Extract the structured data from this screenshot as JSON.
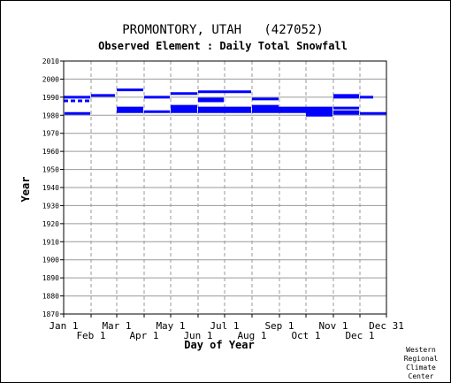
{
  "chart_data": {
    "type": "line",
    "title": "PROMONTORY, UTAH   (427052)",
    "subtitle": "Observed Element : Daily Total Snowfall",
    "xlabel": "Day of Year",
    "ylabel": "Year",
    "credit": [
      "Western",
      "Regional",
      "Climate",
      "Center"
    ],
    "xlim": [
      1,
      366
    ],
    "ylim": [
      1870,
      2010
    ],
    "grid": true,
    "x_ticks_upper": [
      {
        "label": "Jan 1",
        "day": 1
      },
      {
        "label": "Mar 1",
        "day": 61
      },
      {
        "label": "May 1",
        "day": 122
      },
      {
        "label": "Jul 1",
        "day": 183
      },
      {
        "label": "Sep 1",
        "day": 245
      },
      {
        "label": "Nov 1",
        "day": 306
      },
      {
        "label": "Dec 31",
        "day": 366
      }
    ],
    "x_ticks_lower": [
      {
        "label": "Feb 1",
        "day": 32
      },
      {
        "label": "Apr 1",
        "day": 92
      },
      {
        "label": "Jun 1",
        "day": 153
      },
      {
        "label": "Aug 1",
        "day": 214
      },
      {
        "label": "Oct 1",
        "day": 275
      },
      {
        "label": "Dec 1",
        "day": 336
      }
    ],
    "y_ticks": [
      1870,
      1880,
      1890,
      1900,
      1910,
      1920,
      1930,
      1940,
      1950,
      1960,
      1970,
      1980,
      1990,
      2000,
      2010
    ],
    "color": "#0000ff",
    "segments": [
      {
        "year": 1990,
        "start": 1,
        "end": 31
      },
      {
        "year": 1988,
        "start": 1,
        "end": 31,
        "dashed": true
      },
      {
        "year": 1981,
        "start": 2,
        "end": 31
      },
      {
        "year": 1991,
        "start": 32,
        "end": 59
      },
      {
        "year": 1994,
        "start": 61,
        "end": 91
      },
      {
        "year": 1984,
        "start": 61,
        "end": 91
      },
      {
        "year": 1983,
        "start": 61,
        "end": 91
      },
      {
        "year": 1982,
        "start": 61,
        "end": 91
      },
      {
        "year": 1990,
        "start": 92,
        "end": 121
      },
      {
        "year": 1982,
        "start": 92,
        "end": 121
      },
      {
        "year": 1992,
        "start": 122,
        "end": 152
      },
      {
        "year": 1985,
        "start": 122,
        "end": 152
      },
      {
        "year": 1984,
        "start": 122,
        "end": 152
      },
      {
        "year": 1983,
        "start": 122,
        "end": 152
      },
      {
        "year": 1982,
        "start": 122,
        "end": 152
      },
      {
        "year": 1993,
        "start": 153,
        "end": 213
      },
      {
        "year": 1989,
        "start": 153,
        "end": 182
      },
      {
        "year": 1988,
        "start": 153,
        "end": 182
      },
      {
        "year": 1984,
        "start": 153,
        "end": 213
      },
      {
        "year": 1983,
        "start": 153,
        "end": 213
      },
      {
        "year": 1982,
        "start": 153,
        "end": 213
      },
      {
        "year": 1989,
        "start": 214,
        "end": 244
      },
      {
        "year": 1985,
        "start": 214,
        "end": 244
      },
      {
        "year": 1984,
        "start": 214,
        "end": 305
      },
      {
        "year": 1983,
        "start": 214,
        "end": 305
      },
      {
        "year": 1982,
        "start": 214,
        "end": 305
      },
      {
        "year": 1981,
        "start": 275,
        "end": 305
      },
      {
        "year": 1980,
        "start": 275,
        "end": 305
      },
      {
        "year": 1991,
        "start": 306,
        "end": 335
      },
      {
        "year": 1990,
        "start": 306,
        "end": 335
      },
      {
        "year": 1984,
        "start": 306,
        "end": 335
      },
      {
        "year": 1982,
        "start": 306,
        "end": 335
      },
      {
        "year": 1981,
        "start": 306,
        "end": 335
      },
      {
        "year": 1990,
        "start": 336,
        "end": 351
      },
      {
        "year": 1981,
        "start": 336,
        "end": 366
      }
    ]
  }
}
